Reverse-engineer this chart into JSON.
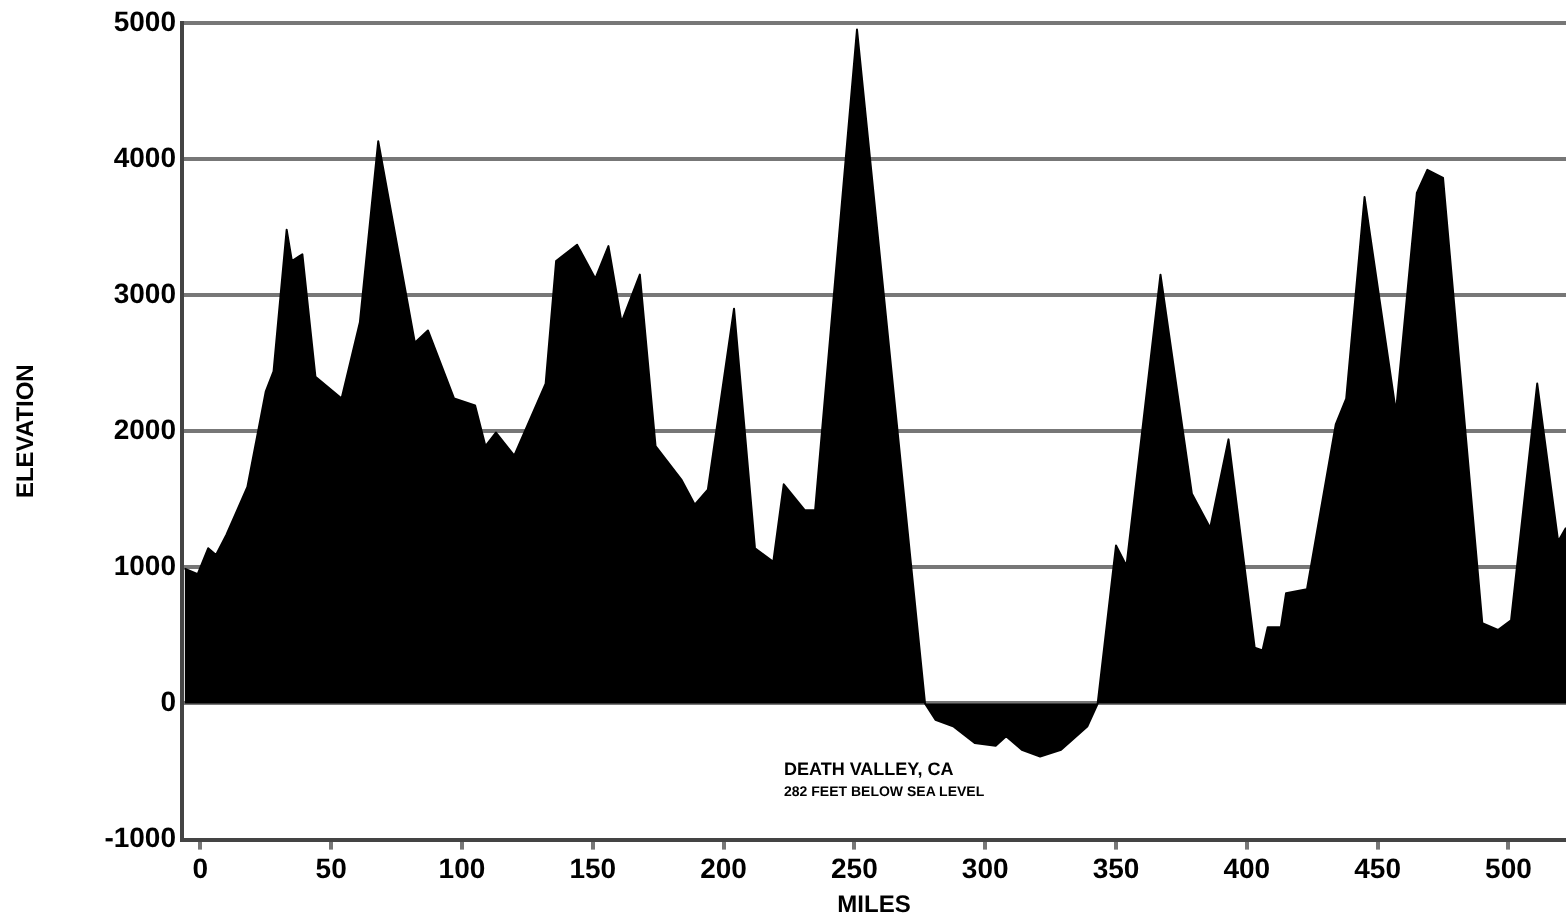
{
  "chart_data": {
    "type": "area",
    "xlabel": "MILES",
    "ylabel": "ELEVATION",
    "x": [
      -6,
      -1,
      3,
      6,
      10,
      18,
      25,
      28,
      33,
      35,
      39,
      44,
      54,
      61,
      68,
      82,
      87,
      97,
      105,
      109,
      113,
      120,
      132,
      136,
      144,
      151,
      156,
      161,
      168,
      174,
      184,
      189,
      194,
      204,
      212,
      219,
      223,
      231,
      235,
      251,
      277,
      281,
      288,
      296,
      304,
      308,
      314,
      321,
      329,
      339,
      343,
      350,
      354,
      367,
      379,
      386,
      393,
      403,
      406,
      408,
      413,
      415,
      423,
      434,
      438,
      445,
      457,
      465,
      469,
      475,
      490,
      496,
      501,
      511,
      519,
      522
    ],
    "series": [
      {
        "color": "#000000",
        "values": [
          990,
          950,
          1140,
          1090,
          1240,
          1590,
          2290,
          2440,
          3480,
          3250,
          3300,
          2400,
          2240,
          2800,
          4130,
          2650,
          2740,
          2240,
          2190,
          1890,
          1990,
          1820,
          2350,
          3250,
          3370,
          3120,
          3360,
          2800,
          3150,
          1890,
          1640,
          1460,
          1570,
          2900,
          1140,
          1040,
          1610,
          1420,
          1420,
          4950,
          0,
          -120,
          -170,
          -290,
          -310,
          -240,
          -340,
          -390,
          -340,
          -170,
          0,
          1160,
          1010,
          3150,
          1540,
          1290,
          1940,
          410,
          390,
          560,
          560,
          810,
          840,
          2050,
          2240,
          3720,
          2140,
          3750,
          3920,
          3860,
          590,
          540,
          610,
          2350,
          1190,
          1290
        ]
      }
    ],
    "xlim": [
      -7,
      522
    ],
    "xticks": [
      0,
      50,
      100,
      150,
      200,
      250,
      300,
      350,
      400,
      450,
      500
    ],
    "ylim": [
      -1000,
      5000
    ],
    "yticks": [
      -1000,
      0,
      1000,
      2000,
      3000,
      4000,
      5000
    ],
    "grid": "y",
    "legend": false,
    "annotations": [
      "DEATH VALLEY, CA",
      "282 FEET BELOW SEA LEVEL"
    ]
  }
}
